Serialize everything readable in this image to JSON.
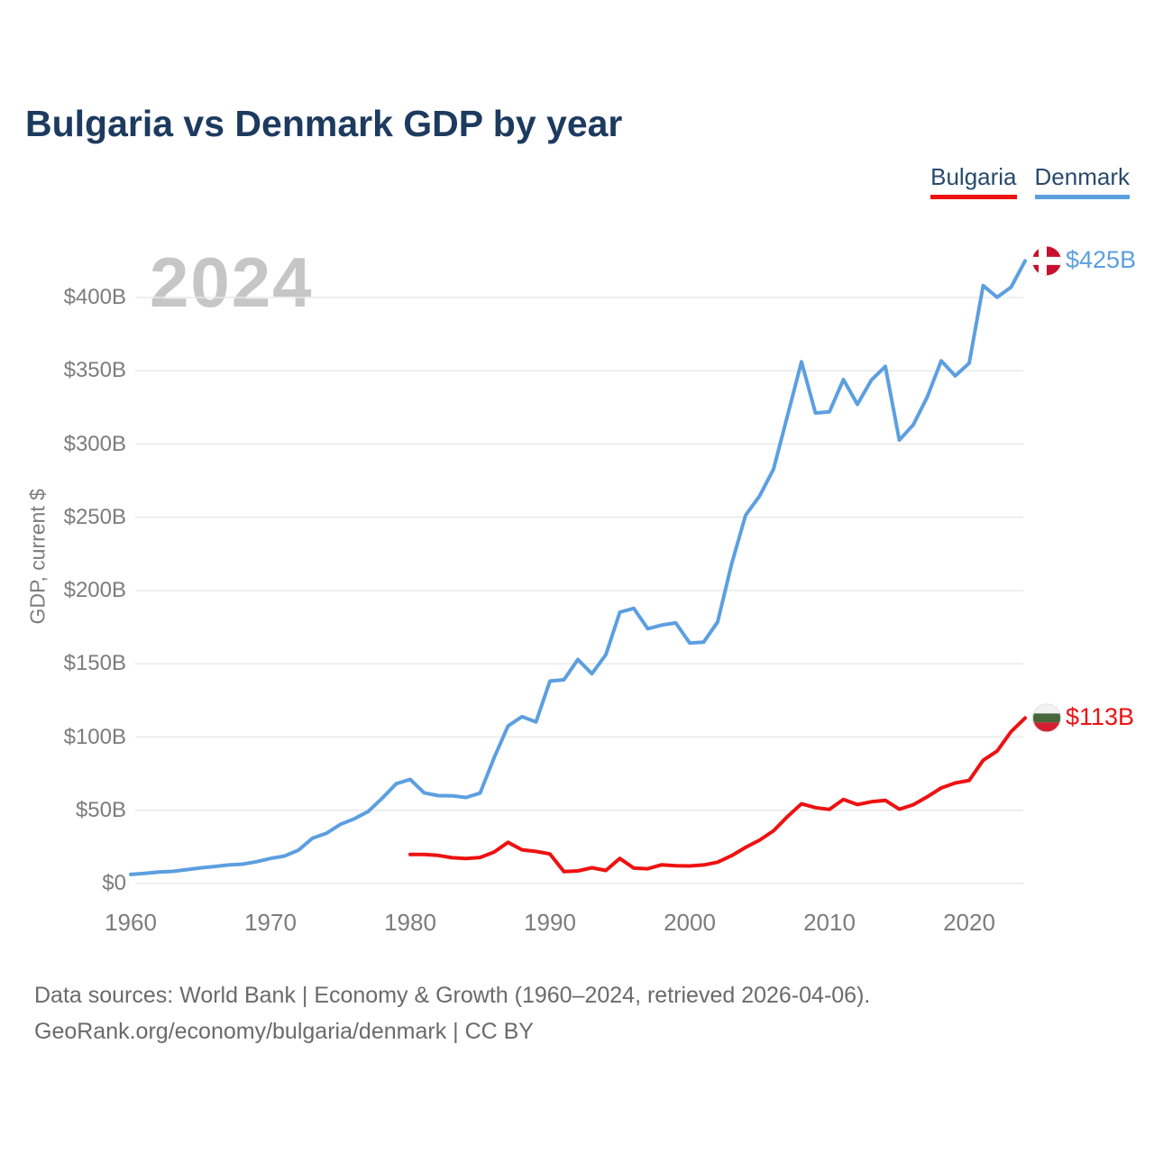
{
  "header": {
    "title": "Bulgaria vs Denmark GDP by year"
  },
  "legend": {
    "items": [
      {
        "label": "Bulgaria"
      },
      {
        "label": "Denmark"
      }
    ]
  },
  "watermark": "2024",
  "footer": {
    "line1": "Data sources: World Bank | Economy & Growth (1960–2024, retrieved 2026-04-06).",
    "line2": "GeoRank.org/economy/bulgaria/denmark | CC BY"
  },
  "colors": {
    "bulgaria_accent": "#ee1111",
    "denmark_accent": "#5c9fe0",
    "title_navy": "#1d3a5f",
    "gridline": "#e8e8e8",
    "tick_text": "#7c7c7c",
    "watermark_gray": "#c6c6c6"
  },
  "chart_data": {
    "type": "line",
    "title": "Bulgaria vs Denmark GDP by year",
    "xlabel": "",
    "ylabel": "GDP, current $",
    "y_unit": "billions of current US$",
    "x_unit": "year",
    "xlim": [
      1960,
      2024
    ],
    "ylim": [
      0,
      430
    ],
    "grid": "horizontal",
    "legend_position": "top-right",
    "yticks": [
      {
        "value": 0,
        "label": "$0"
      },
      {
        "value": 50,
        "label": "$50B"
      },
      {
        "value": 100,
        "label": "$100B"
      },
      {
        "value": 150,
        "label": "$150B"
      },
      {
        "value": 200,
        "label": "$200B"
      },
      {
        "value": 250,
        "label": "$250B"
      },
      {
        "value": 300,
        "label": "$300B"
      },
      {
        "value": 350,
        "label": "$350B"
      },
      {
        "value": 400,
        "label": "$400B"
      }
    ],
    "xticks": [
      {
        "value": 1960,
        "label": "1960"
      },
      {
        "value": 1970,
        "label": "1970"
      },
      {
        "value": 1980,
        "label": "1980"
      },
      {
        "value": 1990,
        "label": "1990"
      },
      {
        "value": 2000,
        "label": "2000"
      },
      {
        "value": 2010,
        "label": "2010"
      },
      {
        "value": 2020,
        "label": "2020"
      }
    ],
    "series": [
      {
        "name": "Bulgaria",
        "color": "#ee1111",
        "end_label": "$113B",
        "flag": "bulgaria",
        "start_year": 1980,
        "values": [
          19.8,
          19.9,
          19.2,
          17.6,
          17.1,
          17.8,
          21.5,
          28.1,
          23.0,
          21.9,
          20.2,
          8.2,
          8.6,
          10.8,
          8.9,
          17.1,
          10.5,
          10.1,
          12.8,
          12.2,
          12.0,
          12.7,
          14.6,
          19.0,
          24.7,
          29.6,
          36.0,
          45.7,
          54.4,
          51.8,
          50.6,
          57.4,
          53.9,
          55.8,
          56.8,
          50.7,
          53.8,
          59.2,
          65.2,
          68.6,
          70.4,
          84.1,
          90.4,
          103.7,
          113.0
        ]
      },
      {
        "name": "Denmark",
        "color": "#5c9fe0",
        "end_label": "$425B",
        "flag": "denmark",
        "start_year": 1960,
        "values": [
          6.2,
          6.9,
          7.8,
          8.3,
          9.5,
          10.7,
          11.6,
          12.7,
          13.2,
          14.9,
          17.1,
          18.8,
          22.8,
          30.9,
          34.3,
          40.4,
          44.2,
          49.2,
          58.3,
          68.1,
          71.1,
          61.9,
          60.0,
          59.9,
          58.8,
          61.7,
          85.8,
          107.5,
          113.9,
          110.3,
          138.2,
          139.1,
          152.9,
          143.2,
          156.2,
          185.2,
          187.8,
          173.9,
          176.4,
          177.9,
          164.2,
          164.8,
          178.6,
          218.1,
          251.4,
          264.5,
          282.9,
          319.4,
          356.1,
          321.2,
          322.0,
          344.0,
          327.1,
          343.6,
          353.0,
          302.7,
          313.1,
          332.1,
          356.8,
          346.5,
          355.2,
          408.1,
          400.2,
          407.1,
          425.0
        ]
      }
    ],
    "flag_colors": {
      "denmark": {
        "bg": "#c8102e",
        "cross": "#ffffff"
      },
      "bulgaria": {
        "white": "#f2f2f2",
        "green": "#47673b",
        "red": "#d51f30"
      }
    }
  }
}
